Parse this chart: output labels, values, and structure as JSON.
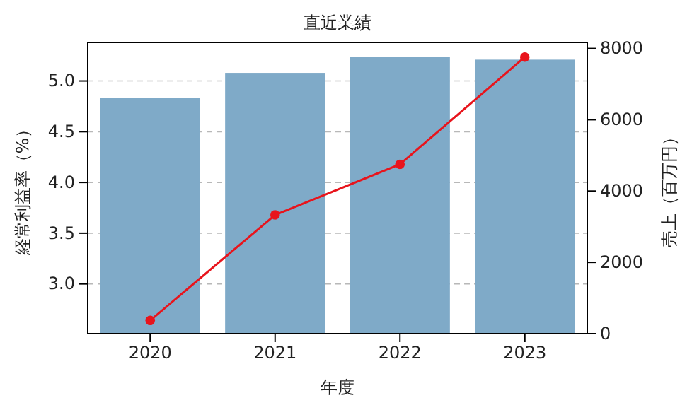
{
  "chart_data": {
    "type": "bar",
    "title": "直近業績",
    "xlabel": "年度",
    "ylabel": "経常利益率（%）",
    "y2label": "売上（百万円）",
    "categories": [
      "2020",
      "2021",
      "2022",
      "2023"
    ],
    "series": [
      {
        "color": "#7faac8",
        "values": [
          4.83,
          5.08,
          5.24,
          5.21
        ]
      },
      {
        "type": "line",
        "axis": "y2",
        "color": "#e8141c",
        "values": [
          370,
          3330,
          4750,
          7760
        ]
      }
    ],
    "ylim": [
      2.51,
      5.38
    ],
    "yticks": [
      {
        "value": 3,
        "label": "3.0"
      },
      {
        "value": 3.5,
        "label": "3.5"
      },
      {
        "value": 4,
        "label": "4.0"
      },
      {
        "value": 4.5,
        "label": "4.5"
      },
      {
        "value": 5,
        "label": "5.0"
      }
    ],
    "y2lim": [
      0,
      8170
    ],
    "y2ticks": [
      0,
      2000,
      4000,
      6000,
      8000
    ],
    "grid": "y",
    "marker": "circle",
    "line_style": "solid"
  }
}
